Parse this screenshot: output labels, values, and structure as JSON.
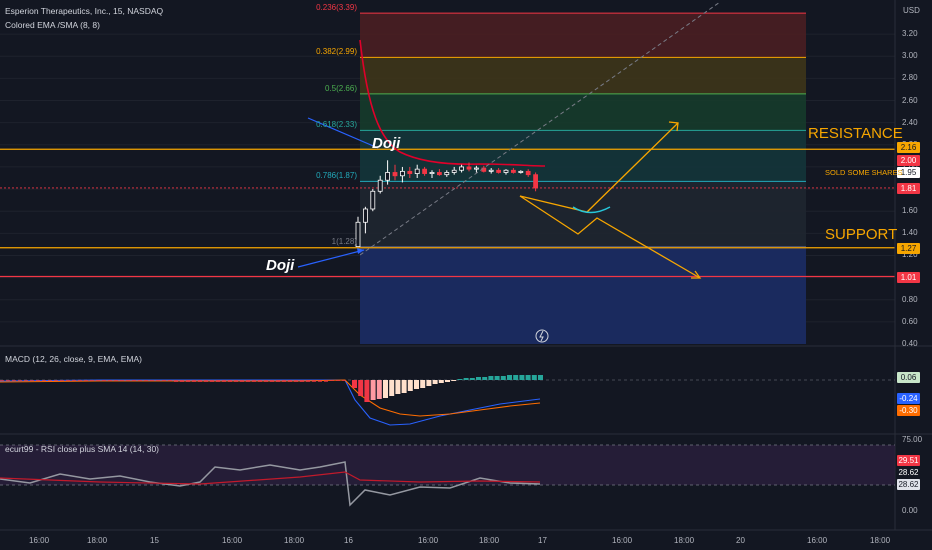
{
  "header": {
    "symbol_line": "Esperion Therapeutics, Inc., 15, NASDAQ",
    "indicator_line": "Colored EMA /SMA (8, 8)",
    "currency": "USD"
  },
  "annotations": {
    "resistance": "RESISTANCE",
    "support": "SUPPORT",
    "sold": "SOLD SOME SHARES",
    "doji_top": "Doji",
    "doji_bottom": "Doji"
  },
  "price_tags": [
    {
      "value": "2.16",
      "bg": "#f7a600",
      "fg": "#131722"
    },
    {
      "value": "2.00",
      "bg": "#f23645",
      "fg": "#ffffff"
    },
    {
      "value": "1.95",
      "bg": "#ffffff",
      "fg": "#131722"
    },
    {
      "value": "1.81",
      "bg": "#f23645",
      "fg": "#ffffff"
    },
    {
      "value": "1.27",
      "bg": "#f7a600",
      "fg": "#131722"
    },
    {
      "value": "1.01",
      "bg": "#f23645",
      "fg": "#ffffff"
    }
  ],
  "macd": {
    "label": "MACD (12, 26, close, 9, EMA, EMA)",
    "tags": [
      {
        "value": "0.06",
        "bg": "#c8e6c9",
        "fg": "#131722"
      },
      {
        "value": "-0.24",
        "bg": "#2962ff",
        "fg": "#ffffff"
      },
      {
        "value": "-0.30",
        "bg": "#ff6d00",
        "fg": "#ffffff"
      }
    ]
  },
  "rsi": {
    "label": "ecurt99 - RSI close plus SMA 14 (14, 30)",
    "axis": [
      "75.00",
      "0.00"
    ],
    "tags": [
      {
        "value": "29.51",
        "bg": "#f23645",
        "fg": "#ffffff"
      },
      {
        "value": "28.62",
        "bg": "#131722",
        "fg": "#ffffff"
      },
      {
        "value": "28.62",
        "bg": "#e0e3eb",
        "fg": "#131722"
      }
    ]
  },
  "time_axis": [
    "16:00",
    "18:00",
    "15",
    "16:00",
    "18:00",
    "16",
    "16:00",
    "18:00",
    "17",
    "16:00",
    "18:00",
    "20",
    "16:00",
    "18:00"
  ],
  "colors": {
    "background": "#131722",
    "up": "#ffffff",
    "down": "#f23645",
    "fib_orange": "#f7a600",
    "resistance": "#f7a600",
    "support": "#f7a600",
    "low_line": "#f23645",
    "ema": "#e0002a"
  },
  "chart_data": {
    "type": "candlestick",
    "y_axis": {
      "range": [
        0.4,
        3.4
      ],
      "ticks": [
        "USD",
        "3.20",
        "3.00",
        "2.80",
        "2.60",
        "2.40",
        "2.20",
        "2.00",
        "1.80",
        "1.60",
        "1.40",
        "1.20",
        "1.00",
        "0.80",
        "0.60",
        "0.40"
      ]
    },
    "fib_levels": [
      {
        "label": "0.236(3.39)",
        "value": 3.39,
        "color": "#f23645",
        "fill": "#4a1e22"
      },
      {
        "label": "0.382(2.99)",
        "value": 2.99,
        "color": "#f7a600",
        "fill": "#3e3519"
      },
      {
        "label": "0.5(2.66)",
        "value": 2.66,
        "color": "#4caf50",
        "fill": "#163b2b"
      },
      {
        "label": "0.618(2.33)",
        "value": 2.33,
        "color": "#26a69a",
        "fill": "#14353a"
      },
      {
        "label": "0.786(1.87)",
        "value": 1.87,
        "color": "#22aabb",
        "fill": "#1f2630"
      },
      {
        "label": "1(1.28)",
        "value": 1.28,
        "color": "#787b86",
        "fill": "#1a2a5e"
      }
    ],
    "horizontal_lines": [
      {
        "name": "resistance",
        "value": 2.16
      },
      {
        "name": "support",
        "value": 1.27
      },
      {
        "name": "low",
        "value": 1.01
      }
    ],
    "candles": [
      {
        "o": 1.28,
        "h": 1.55,
        "l": 1.28,
        "c": 1.5
      },
      {
        "o": 1.5,
        "h": 1.64,
        "l": 1.4,
        "c": 1.62
      },
      {
        "o": 1.62,
        "h": 1.8,
        "l": 1.6,
        "c": 1.78
      },
      {
        "o": 1.78,
        "h": 1.92,
        "l": 1.76,
        "c": 1.88
      },
      {
        "o": 1.88,
        "h": 2.06,
        "l": 1.84,
        "c": 1.95
      },
      {
        "o": 1.95,
        "h": 2.02,
        "l": 1.88,
        "c": 1.92
      },
      {
        "o": 1.92,
        "h": 2.0,
        "l": 1.86,
        "c": 1.96
      },
      {
        "o": 1.96,
        "h": 2.0,
        "l": 1.9,
        "c": 1.94
      },
      {
        "o": 1.94,
        "h": 2.02,
        "l": 1.9,
        "c": 1.98
      },
      {
        "o": 1.98,
        "h": 2.0,
        "l": 1.92,
        "c": 1.94
      },
      {
        "o": 1.94,
        "h": 1.97,
        "l": 1.9,
        "c": 1.95
      },
      {
        "o": 1.95,
        "h": 1.98,
        "l": 1.92,
        "c": 1.93
      },
      {
        "o": 1.93,
        "h": 1.97,
        "l": 1.91,
        "c": 1.95
      },
      {
        "o": 1.95,
        "h": 2.0,
        "l": 1.93,
        "c": 1.97
      },
      {
        "o": 1.97,
        "h": 2.02,
        "l": 1.95,
        "c": 2.0
      },
      {
        "o": 2.0,
        "h": 2.04,
        "l": 1.96,
        "c": 1.98
      },
      {
        "o": 1.98,
        "h": 2.01,
        "l": 1.95,
        "c": 1.99
      },
      {
        "o": 1.99,
        "h": 2.01,
        "l": 1.95,
        "c": 1.96
      },
      {
        "o": 1.96,
        "h": 1.99,
        "l": 1.94,
        "c": 1.97
      },
      {
        "o": 1.97,
        "h": 1.99,
        "l": 1.94,
        "c": 1.95
      },
      {
        "o": 1.95,
        "h": 1.98,
        "l": 1.93,
        "c": 1.97
      },
      {
        "o": 1.97,
        "h": 1.99,
        "l": 1.94,
        "c": 1.95
      },
      {
        "o": 1.95,
        "h": 1.97,
        "l": 1.94,
        "c": 1.96
      },
      {
        "o": 1.96,
        "h": 1.98,
        "l": 1.91,
        "c": 1.93
      },
      {
        "o": 1.93,
        "h": 1.95,
        "l": 1.78,
        "c": 1.81
      }
    ]
  }
}
